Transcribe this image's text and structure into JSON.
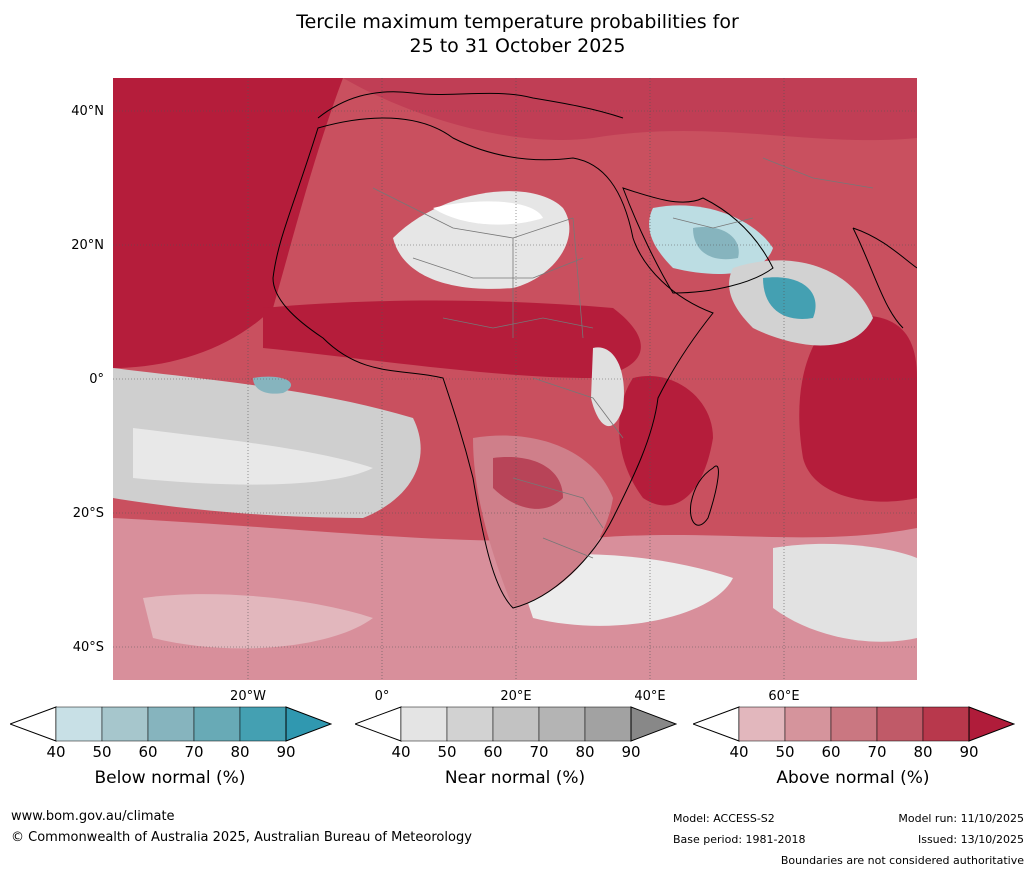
{
  "title_line1": "Tercile maximum temperature probabilities for",
  "title_line2": "25 to 31 October 2025",
  "lat_labels": [
    "40°N",
    "20°N",
    "0°",
    "20°S",
    "40°S"
  ],
  "lon_labels": [
    "20°W",
    "0°",
    "20°E",
    "40°E",
    "60°E"
  ],
  "colorbars": [
    {
      "label": "Below normal (%)",
      "ticks": [
        "40",
        "50",
        "60",
        "70",
        "80",
        "90"
      ],
      "colors": [
        "#ffffff",
        "#c8e0e6",
        "#a6c6cc",
        "#86b4be",
        "#68aab6",
        "#44a0b2",
        "#3098b0"
      ]
    },
    {
      "label": "Near normal (%)",
      "ticks": [
        "40",
        "50",
        "60",
        "70",
        "80",
        "90"
      ],
      "colors": [
        "#ffffff",
        "#e4e4e4",
        "#d2d2d2",
        "#c2c2c2",
        "#b4b4b4",
        "#a2a2a2",
        "#888888"
      ]
    },
    {
      "label": "Above normal (%)",
      "ticks": [
        "40",
        "50",
        "60",
        "70",
        "80",
        "90"
      ],
      "colors": [
        "#ffffff",
        "#e2b7bd",
        "#d5949c",
        "#ca7781",
        "#c05a68",
        "#b8384c",
        "#b01c3a"
      ]
    }
  ],
  "footer": {
    "website": "www.bom.gov.au/climate",
    "copyright": "© Commonwealth of Australia 2025, Australian Bureau of Meteorology",
    "model": "Model: ACCESS-S2",
    "base_period": "Base period: 1981-2018",
    "model_run": "Model run: 11/10/2025",
    "issued": "Issued: 13/10/2025",
    "disclaimer": "Boundaries are not considered authoritative"
  }
}
